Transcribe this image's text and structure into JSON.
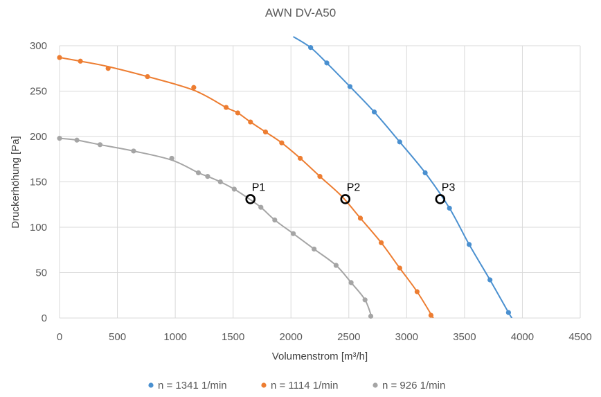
{
  "chart_data": {
    "type": "scatter",
    "title": "AWN DV-A50",
    "xlabel": "Volumenstrom [m³/h]",
    "ylabel": "Druckerhöhung [Pa]",
    "xlim": [
      0,
      4500
    ],
    "ylim": [
      0,
      300
    ],
    "xticks": [
      "0",
      "500",
      "1000",
      "1500",
      "2000",
      "2500",
      "3000",
      "3500",
      "4000",
      "4500"
    ],
    "yticks": [
      "0",
      "50",
      "100",
      "150",
      "200",
      "250",
      "300"
    ],
    "grid": "vertical and horizontal",
    "legend": "bottom",
    "series": [
      {
        "name": "n = 1341 1/min",
        "color": "#4a90d0",
        "points": [
          [
            2170,
            298
          ],
          [
            2310,
            281
          ],
          [
            2510,
            255
          ],
          [
            2720,
            227
          ],
          [
            2940,
            194
          ],
          [
            3160,
            160
          ],
          [
            3370,
            121
          ],
          [
            3540,
            81
          ],
          [
            3720,
            42
          ],
          [
            3880,
            6
          ]
        ],
        "curve": [
          [
            2020,
            310
          ],
          [
            2170,
            298
          ],
          [
            2310,
            281
          ],
          [
            2510,
            255
          ],
          [
            2720,
            227
          ],
          [
            2940,
            194
          ],
          [
            3160,
            160
          ],
          [
            3370,
            121
          ],
          [
            3540,
            81
          ],
          [
            3720,
            42
          ],
          [
            3880,
            6
          ],
          [
            3910,
            0
          ]
        ]
      },
      {
        "name": "n = 1114 1/min",
        "color": "#ed7d31",
        "points": [
          [
            0,
            287
          ],
          [
            180,
            283
          ],
          [
            420,
            275
          ],
          [
            760,
            266
          ],
          [
            1160,
            254
          ],
          [
            1440,
            232
          ],
          [
            1540,
            226
          ],
          [
            1650,
            216
          ],
          [
            1780,
            205
          ],
          [
            1920,
            193
          ],
          [
            2080,
            176
          ],
          [
            2250,
            156
          ],
          [
            2600,
            110
          ],
          [
            2780,
            83
          ],
          [
            2940,
            55
          ],
          [
            3090,
            29
          ],
          [
            3210,
            3
          ]
        ],
        "curve": [
          [
            0,
            287
          ],
          [
            180,
            283
          ],
          [
            420,
            277
          ],
          [
            760,
            266
          ],
          [
            1160,
            251
          ],
          [
            1440,
            232
          ],
          [
            1540,
            226
          ],
          [
            1650,
            216
          ],
          [
            1780,
            205
          ],
          [
            1920,
            193
          ],
          [
            2080,
            176
          ],
          [
            2250,
            156
          ],
          [
            2440,
            134
          ],
          [
            2600,
            110
          ],
          [
            2780,
            83
          ],
          [
            2940,
            55
          ],
          [
            3090,
            29
          ],
          [
            3230,
            0
          ]
        ]
      },
      {
        "name": "n = 926 1/min",
        "color": "#a5a5a5",
        "points": [
          [
            0,
            198
          ],
          [
            150,
            196
          ],
          [
            350,
            191
          ],
          [
            640,
            184
          ],
          [
            970,
            176
          ],
          [
            1200,
            160
          ],
          [
            1280,
            156
          ],
          [
            1390,
            150
          ],
          [
            1510,
            142
          ],
          [
            1740,
            122
          ],
          [
            1860,
            108
          ],
          [
            2020,
            93
          ],
          [
            2200,
            76
          ],
          [
            2390,
            58
          ],
          [
            2520,
            39
          ],
          [
            2640,
            20
          ],
          [
            2690,
            2
          ]
        ],
        "curve": [
          [
            0,
            198
          ],
          [
            150,
            196
          ],
          [
            350,
            191
          ],
          [
            640,
            184
          ],
          [
            970,
            174
          ],
          [
            1200,
            160
          ],
          [
            1280,
            156
          ],
          [
            1390,
            150
          ],
          [
            1510,
            142
          ],
          [
            1630,
            132
          ],
          [
            1740,
            122
          ],
          [
            1860,
            108
          ],
          [
            2020,
            93
          ],
          [
            2200,
            76
          ],
          [
            2390,
            58
          ],
          [
            2520,
            39
          ],
          [
            2640,
            20
          ],
          [
            2700,
            0
          ]
        ]
      }
    ],
    "operating_points": [
      {
        "label": "P1",
        "x": 1650,
        "y": 131
      },
      {
        "label": "P2",
        "x": 2470,
        "y": 131
      },
      {
        "label": "P3",
        "x": 3290,
        "y": 131
      }
    ]
  }
}
